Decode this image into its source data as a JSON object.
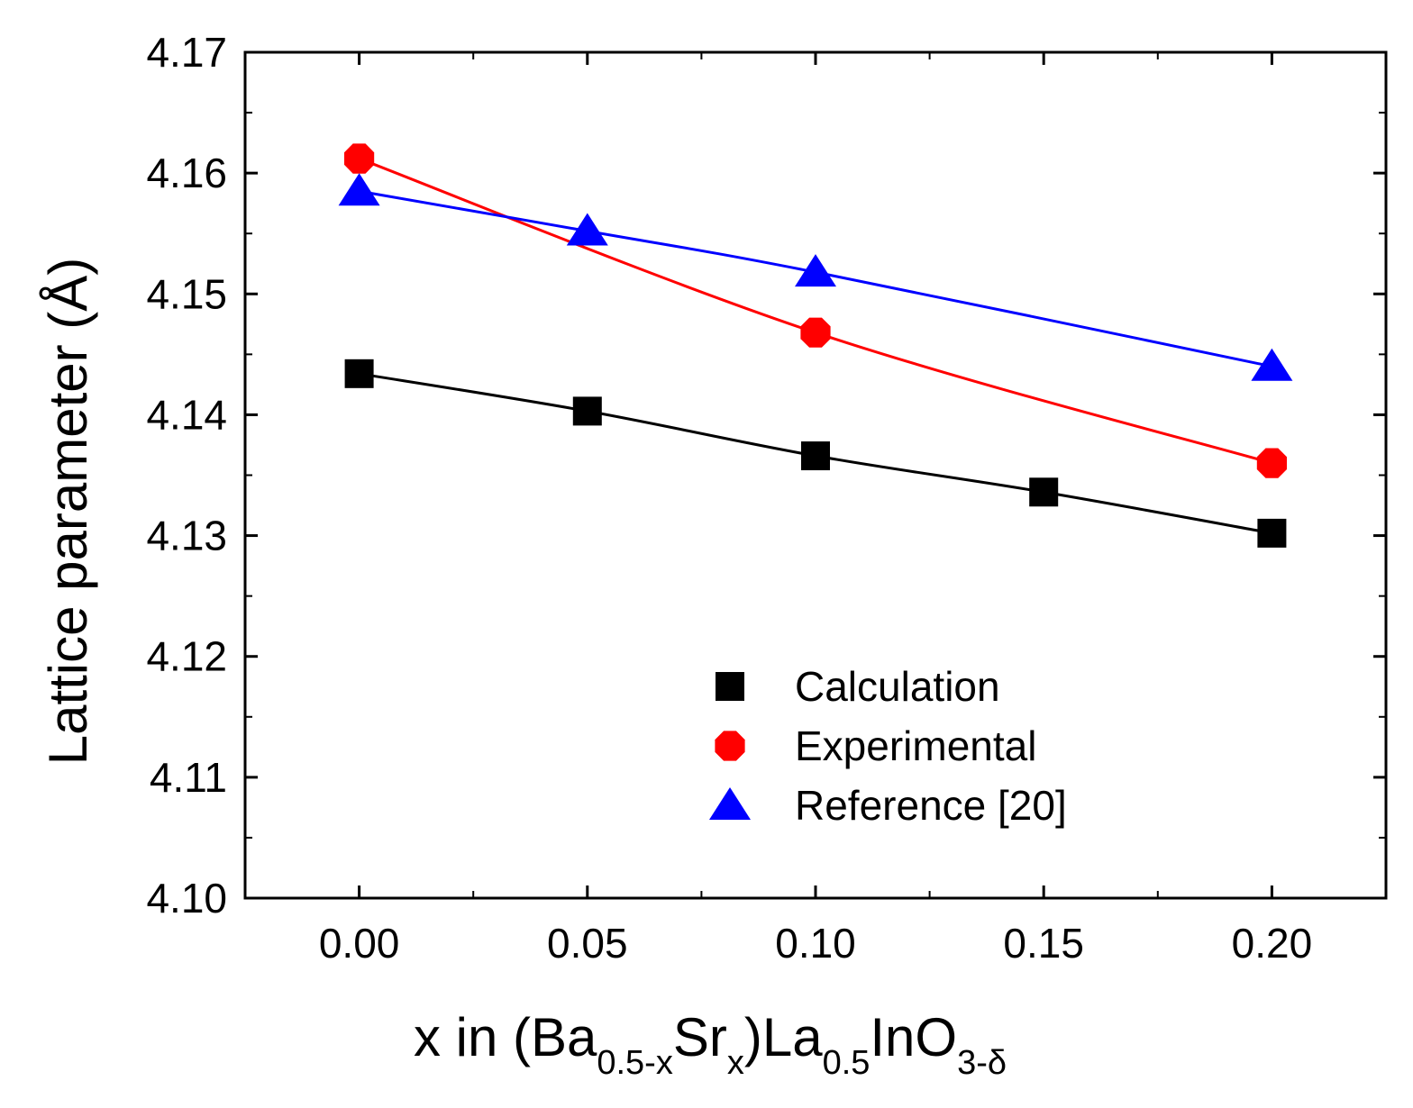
{
  "chart_data": {
    "type": "line",
    "title": "",
    "xlabel": {
      "parts": [
        {
          "text": "x in (Ba",
          "sub": false
        },
        {
          "text": "0.5-x",
          "sub": true
        },
        {
          "text": "Sr",
          "sub": false
        },
        {
          "text": "x",
          "sub": true
        },
        {
          "text": ")La",
          "sub": false
        },
        {
          "text": "0.5",
          "sub": true
        },
        {
          "text": "InO",
          "sub": false
        },
        {
          "text": "3-δ",
          "sub": true
        }
      ]
    },
    "ylabel": "Lattice parameter (Å)",
    "xlim": [
      -0.025,
      0.225
    ],
    "ylim": [
      4.1,
      4.17
    ],
    "xticks": [
      0.0,
      0.05,
      0.1,
      0.15,
      0.2
    ],
    "xtick_labels": [
      "0.00",
      "0.05",
      "0.10",
      "0.15",
      "0.20"
    ],
    "xminor": [
      0.025,
      0.075,
      0.125,
      0.175
    ],
    "yticks": [
      4.1,
      4.11,
      4.12,
      4.13,
      4.14,
      4.15,
      4.16,
      4.17
    ],
    "ytick_labels": [
      "4.10",
      "4.11",
      "4.12",
      "4.13",
      "4.14",
      "4.15",
      "4.16",
      "4.17"
    ],
    "yminor": [
      4.105,
      4.115,
      4.125,
      4.135,
      4.145,
      4.155,
      4.165
    ],
    "grid": false,
    "legend_position": "bottom-right",
    "series": [
      {
        "name": "Calculation",
        "color": "#000000",
        "marker": "square",
        "x": [
          0.0,
          0.05,
          0.1,
          0.15,
          0.2
        ],
        "y": [
          4.1434,
          4.1403,
          4.1366,
          4.1336,
          4.1302
        ]
      },
      {
        "name": "Experimental",
        "color": "#ff0000",
        "marker": "circle",
        "x": [
          0.0,
          0.1,
          0.2
        ],
        "y": [
          4.1612,
          4.1468,
          4.136
        ]
      },
      {
        "name": "Reference [20]",
        "color": "#0000ff",
        "marker": "triangle",
        "x": [
          0.0,
          0.05,
          0.1,
          0.2
        ],
        "y": [
          4.1585,
          4.1552,
          4.1518,
          4.144
        ]
      }
    ]
  }
}
